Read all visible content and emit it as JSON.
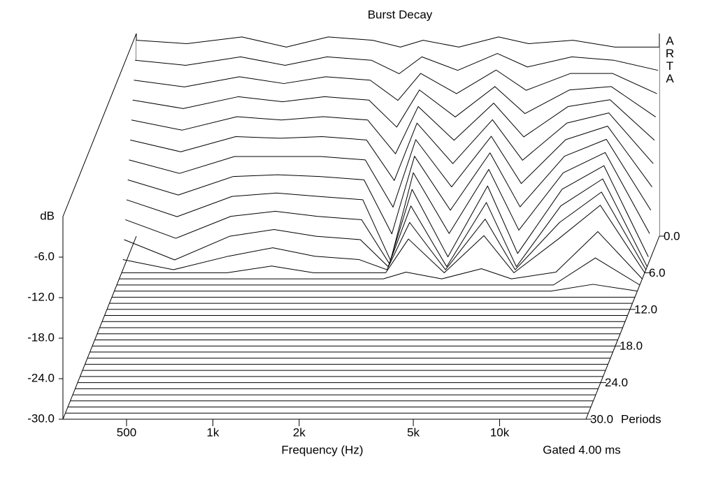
{
  "chart_data": {
    "type": "waterfall",
    "title": "Burst Decay",
    "ylabel": "dB",
    "xlabel": "Frequency (Hz)",
    "zlabel": "Periods",
    "annotation": "Gated 4.00 ms",
    "watermark": "ARTA",
    "xscale": "log",
    "xlim": [
      300,
      20000
    ],
    "xticks": [
      500,
      {
        "value": 1000,
        "label": "1k"
      },
      {
        "value": 2000,
        "label": "2k"
      },
      {
        "value": 5000,
        "label": "5k"
      },
      {
        "value": 10000,
        "label": "10k"
      }
    ],
    "ylim": [
      -30,
      0
    ],
    "yticks": [
      {
        "value": -6,
        "label": "-6.0"
      },
      {
        "value": -12,
        "label": "-12.0"
      },
      {
        "value": -18,
        "label": "-18.0"
      },
      {
        "value": -24,
        "label": "-24.0"
      },
      {
        "value": -30,
        "label": "-30.0"
      }
    ],
    "zlim": [
      0,
      30
    ],
    "zticks": [
      {
        "value": 0,
        "label": "0.0"
      },
      {
        "value": 6,
        "label": "6.0"
      },
      {
        "value": 12,
        "label": "12.0"
      },
      {
        "value": 18,
        "label": "18.0"
      },
      {
        "value": 24,
        "label": "24.0"
      },
      {
        "value": 30,
        "label": "30.0"
      }
    ],
    "color": "#000000",
    "x": [
      300,
      450,
      700,
      1000,
      1400,
      2000,
      2500,
      3000,
      4000,
      5500,
      7000,
      10000,
      14000,
      20000
    ],
    "z": [
      0,
      0.5,
      1,
      1.5,
      2,
      2.5,
      3,
      3.5,
      4,
      4.5,
      5,
      5.5,
      6,
      7,
      8,
      9,
      10,
      11,
      12,
      13,
      14,
      15,
      16,
      17,
      18,
      19,
      20,
      21,
      22,
      23,
      24,
      25,
      26,
      27,
      28,
      29,
      30
    ],
    "values": [
      [
        -1,
        -1.5,
        -0.5,
        -2,
        -0.5,
        -1,
        -2,
        -1,
        -2,
        -0.5,
        -1.5,
        -1,
        -2,
        -2
      ],
      [
        -3.5,
        -4.25,
        -3,
        -4.25,
        -3,
        -3.5,
        -5.5,
        -3,
        -5,
        -2.5,
        -4.5,
        -3,
        -3.5,
        -5
      ],
      [
        -6,
        -7,
        -5.5,
        -6.5,
        -5.5,
        -6,
        -9,
        -5,
        -8,
        -4.5,
        -7.5,
        -5,
        -5,
        -8
      ],
      [
        -8.5,
        -9.75,
        -8,
        -8.75,
        -8,
        -8.5,
        -12.5,
        -7,
        -11,
        -6.5,
        -10.5,
        -7,
        -6.5,
        -11
      ],
      [
        -11,
        -12.5,
        -10.5,
        -11,
        -10.5,
        -11,
        -16,
        -9,
        -14,
        -8.5,
        -13.5,
        -9,
        -8,
        -14
      ],
      [
        -13.5,
        -15.25,
        -13,
        -13.25,
        -13,
        -13.5,
        -19.5,
        -11,
        -17,
        -10.5,
        -16.5,
        -11,
        -9.5,
        -17
      ],
      [
        -16,
        -18,
        -15.5,
        -15.5,
        -15.5,
        -16,
        -23,
        -13,
        -20,
        -12.5,
        -19.5,
        -13,
        -11,
        -20
      ],
      [
        -18.5,
        -20.75,
        -18,
        -17.75,
        -18,
        -18.5,
        -26.5,
        -15,
        -23,
        -14.5,
        -22.5,
        -15,
        -12.5,
        -23
      ],
      [
        -21,
        -23.5,
        -20.5,
        -20,
        -20.5,
        -21,
        -30,
        -17,
        -26,
        -16.5,
        -25.5,
        -17,
        -14,
        -26
      ],
      [
        -23.5,
        -26.25,
        -23,
        -22.25,
        -23,
        -23.5,
        -30,
        -19,
        -29,
        -18.5,
        -28.5,
        -19,
        -15.5,
        -29
      ],
      [
        -26,
        -29,
        -25.5,
        -24.5,
        -25.5,
        -26,
        -30,
        -21,
        -30,
        -20.5,
        -30,
        -21,
        -17,
        -30
      ],
      [
        -28.5,
        -30,
        -28,
        -26.75,
        -28,
        -28.5,
        -30,
        -23,
        -30,
        -22.5,
        -30,
        -23,
        -18.5,
        -30
      ],
      [
        -30,
        -30,
        -30,
        -29,
        -30,
        -30,
        -30,
        -25,
        -30,
        -24.5,
        -30,
        -25,
        -20,
        -30
      ],
      [
        -30,
        -30,
        -30,
        -30,
        -30,
        -30,
        -30,
        -29,
        -30,
        -28.5,
        -30,
        -29,
        -23,
        -30
      ],
      [
        -30,
        -30,
        -30,
        -30,
        -30,
        -30,
        -30,
        -30,
        -30,
        -30,
        -30,
        -30,
        -26,
        -30
      ],
      [
        -30,
        -30,
        -30,
        -30,
        -30,
        -30,
        -30,
        -30,
        -30,
        -30,
        -30,
        -30,
        -29,
        -30
      ],
      [
        -30,
        -30,
        -30,
        -30,
        -30,
        -30,
        -30,
        -30,
        -30,
        -30,
        -30,
        -30,
        -30,
        -30
      ],
      [
        -30,
        -30,
        -30,
        -30,
        -30,
        -30,
        -30,
        -30,
        -30,
        -30,
        -30,
        -30,
        -30,
        -30
      ],
      [
        -30,
        -30,
        -30,
        -30,
        -30,
        -30,
        -30,
        -30,
        -30,
        -30,
        -30,
        -30,
        -30,
        -30
      ],
      [
        -30,
        -30,
        -30,
        -30,
        -30,
        -30,
        -30,
        -30,
        -30,
        -30,
        -30,
        -30,
        -30,
        -30
      ],
      [
        -30,
        -30,
        -30,
        -30,
        -30,
        -30,
        -30,
        -30,
        -30,
        -30,
        -30,
        -30,
        -30,
        -30
      ],
      [
        -30,
        -30,
        -30,
        -30,
        -30,
        -30,
        -30,
        -30,
        -30,
        -30,
        -30,
        -30,
        -30,
        -30
      ],
      [
        -30,
        -30,
        -30,
        -30,
        -30,
        -30,
        -30,
        -30,
        -30,
        -30,
        -30,
        -30,
        -30,
        -30
      ],
      [
        -30,
        -30,
        -30,
        -30,
        -30,
        -30,
        -30,
        -30,
        -30,
        -30,
        -30,
        -30,
        -30,
        -30
      ],
      [
        -30,
        -30,
        -30,
        -30,
        -30,
        -30,
        -30,
        -30,
        -30,
        -30,
        -30,
        -30,
        -30,
        -30
      ],
      [
        -30,
        -30,
        -30,
        -30,
        -30,
        -30,
        -30,
        -30,
        -30,
        -30,
        -30,
        -30,
        -30,
        -30
      ],
      [
        -30,
        -30,
        -30,
        -30,
        -30,
        -30,
        -30,
        -30,
        -30,
        -30,
        -30,
        -30,
        -30,
        -30
      ],
      [
        -30,
        -30,
        -30,
        -30,
        -30,
        -30,
        -30,
        -30,
        -30,
        -30,
        -30,
        -30,
        -30,
        -30
      ],
      [
        -30,
        -30,
        -30,
        -30,
        -30,
        -30,
        -30,
        -30,
        -30,
        -30,
        -30,
        -30,
        -30,
        -30
      ],
      [
        -30,
        -30,
        -30,
        -30,
        -30,
        -30,
        -30,
        -30,
        -30,
        -30,
        -30,
        -30,
        -30,
        -30
      ],
      [
        -30,
        -30,
        -30,
        -30,
        -30,
        -30,
        -30,
        -30,
        -30,
        -30,
        -30,
        -30,
        -30,
        -30
      ],
      [
        -30,
        -30,
        -30,
        -30,
        -30,
        -30,
        -30,
        -30,
        -30,
        -30,
        -30,
        -30,
        -30,
        -30
      ],
      [
        -30,
        -30,
        -30,
        -30,
        -30,
        -30,
        -30,
        -30,
        -30,
        -30,
        -30,
        -30,
        -30,
        -30
      ],
      [
        -30,
        -30,
        -30,
        -30,
        -30,
        -30,
        -30,
        -30,
        -30,
        -30,
        -30,
        -30,
        -30,
        -30
      ],
      [
        -30,
        -30,
        -30,
        -30,
        -30,
        -30,
        -30,
        -30,
        -30,
        -30,
        -30,
        -30,
        -30,
        -30
      ],
      [
        -30,
        -30,
        -30,
        -30,
        -30,
        -30,
        -30,
        -30,
        -30,
        -30,
        -30,
        -30,
        -30,
        -30
      ],
      [
        -30,
        -30,
        -30,
        -30,
        -30,
        -30,
        -30,
        -30,
        -30,
        -30,
        -30,
        -30,
        -30,
        -30
      ]
    ]
  }
}
